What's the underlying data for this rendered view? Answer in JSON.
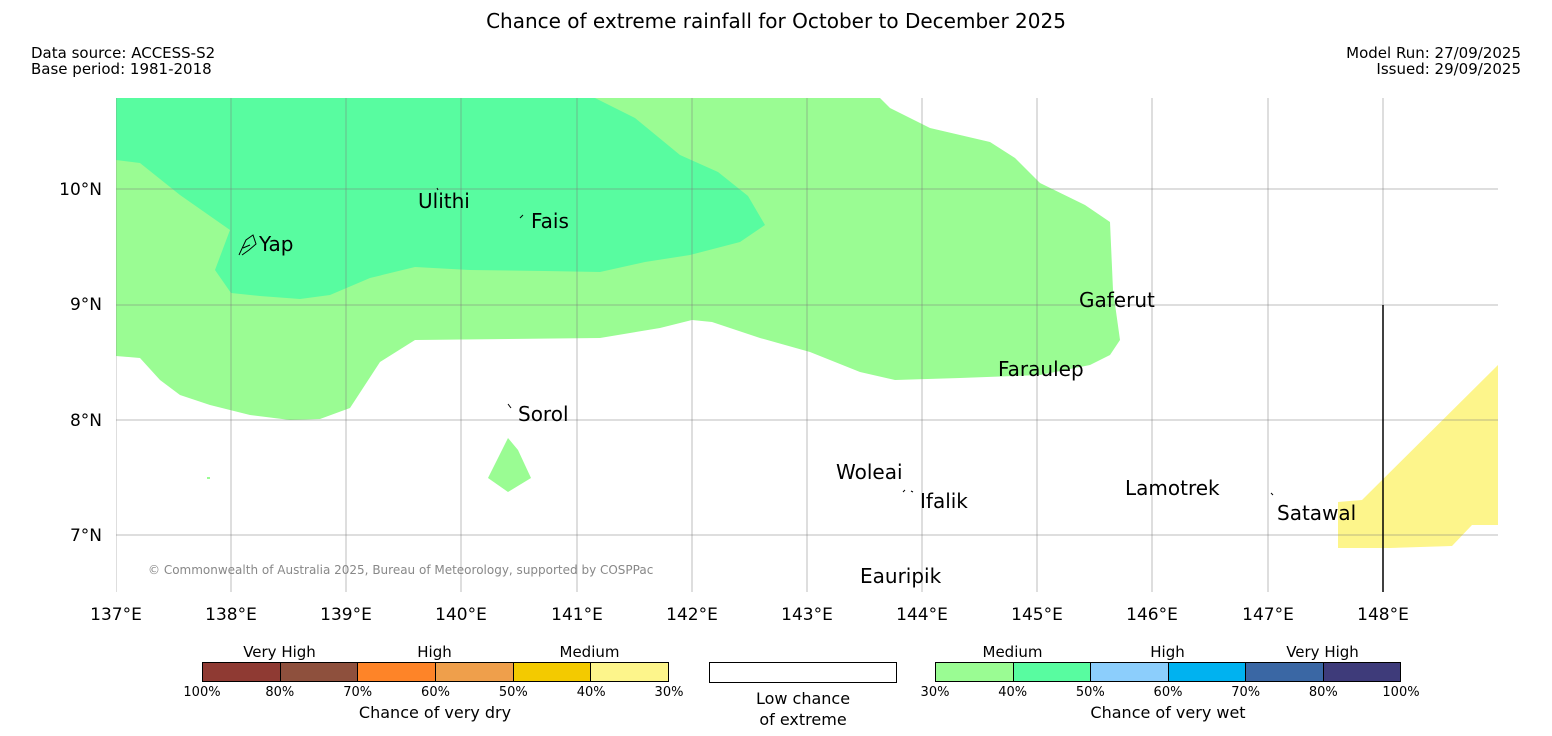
{
  "title": "Chance of extreme rainfall for October to December 2025",
  "header": {
    "data_source": "Data source: ACCESS-S2",
    "base_period": "Base period: 1981-2018",
    "model_run": "Model Run: 27/09/2025",
    "issued": "Issued: 29/09/2025"
  },
  "map": {
    "lat_labels": [
      "10°N",
      "9°N",
      "8°N",
      "7°N"
    ],
    "lon_labels": [
      "137°E",
      "138°E",
      "139°E",
      "140°E",
      "141°E",
      "142°E",
      "143°E",
      "144°E",
      "145°E",
      "146°E",
      "147°E",
      "148°E"
    ],
    "islands": [
      "Yap",
      "Ulithi",
      "Fais",
      "Gaferut",
      "Faraulep",
      "Sorol",
      "Woleai",
      "Ifalik",
      "Lamotrek",
      "Satawal",
      "Eauripik"
    ],
    "copyright": "© Commonwealth of Australia 2025, Bureau of Meteorology, supported by COSPPac",
    "colors": {
      "wet_medium_light": "#9afc93",
      "wet_medium_dark": "#58fca0",
      "dry_medium_light": "#fdf58b"
    }
  },
  "legend": {
    "dry": {
      "categories": [
        "Very High",
        "High",
        "Medium"
      ],
      "ticks": [
        "100%",
        "80%",
        "70%",
        "60%",
        "50%",
        "40%",
        "30%"
      ],
      "colors": [
        "#8f3a33",
        "#8e503d",
        "#fe8428",
        "#ef9f4b",
        "#f3ca00",
        "#fdf58b"
      ],
      "title": "Chance of very dry"
    },
    "low": {
      "line1": "Low chance",
      "line2": "of extreme"
    },
    "wet": {
      "categories": [
        "Medium",
        "High",
        "Very High"
      ],
      "ticks": [
        "30%",
        "40%",
        "50%",
        "60%",
        "70%",
        "80%",
        "100%"
      ],
      "colors": [
        "#9afc93",
        "#58fca0",
        "#8ccefc",
        "#00b2f0",
        "#3a67a4",
        "#3e3b7a"
      ],
      "title": "Chance of very wet"
    }
  }
}
